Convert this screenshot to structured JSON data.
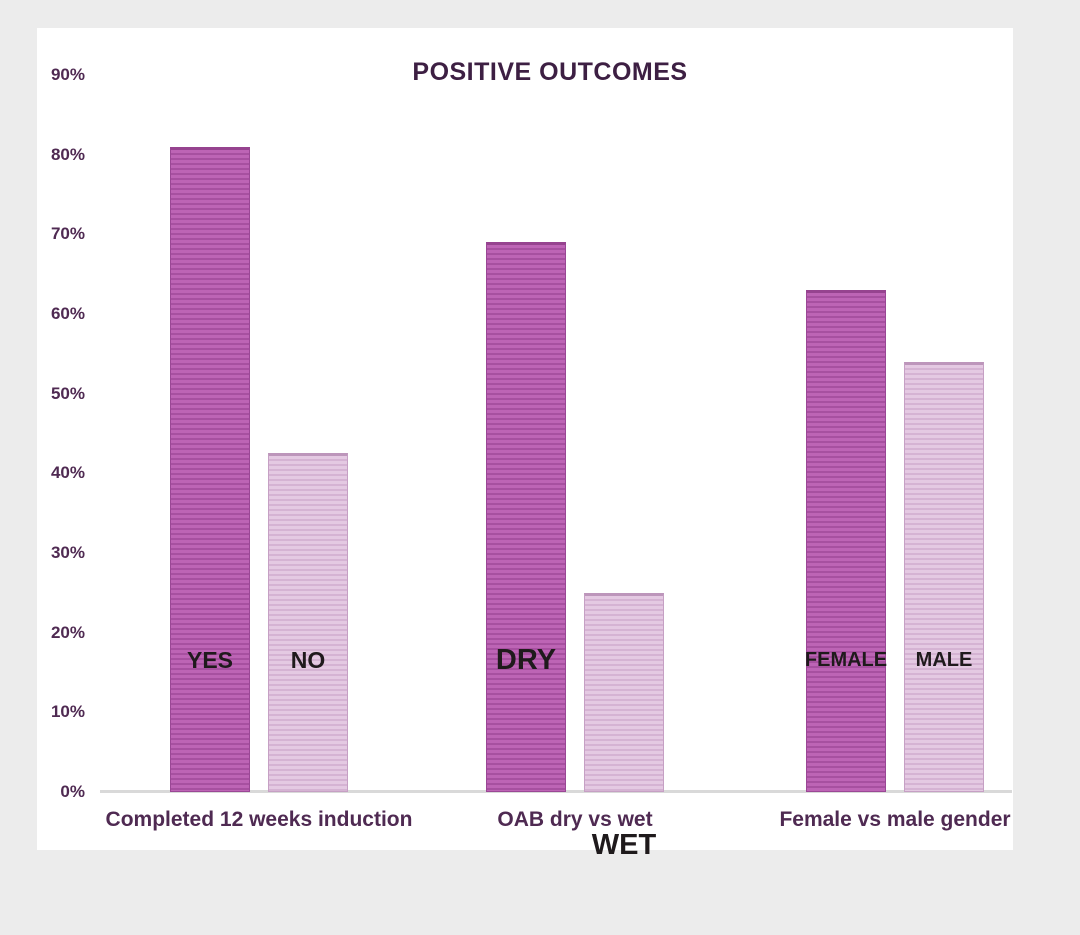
{
  "chart_data": {
    "type": "bar",
    "title": "POSITIVE OUTCOMES",
    "xlabel": "",
    "ylabel": "",
    "ylim": [
      0,
      90
    ],
    "grid": false,
    "legend": "none (labels inside bars)",
    "yticks": [
      {
        "value": 90,
        "label": "90%"
      },
      {
        "value": 80,
        "label": "80%"
      },
      {
        "value": 70,
        "label": "70%"
      },
      {
        "value": 60,
        "label": "60%"
      },
      {
        "value": 50,
        "label": "50%"
      },
      {
        "value": 40,
        "label": "40%"
      },
      {
        "value": 30,
        "label": "30%"
      },
      {
        "value": 20,
        "label": "20%"
      },
      {
        "value": 10,
        "label": "10%"
      },
      {
        "value": 0,
        "label": "0%"
      }
    ],
    "groups": [
      {
        "category": "Completed 12 weeks induction",
        "bars": [
          {
            "label": "YES",
            "value": 81,
            "variant": "dark"
          },
          {
            "label": "NO",
            "value": 42.5,
            "variant": "light"
          }
        ]
      },
      {
        "category": "OAB dry vs wet",
        "bars": [
          {
            "label": "DRY",
            "value": 69,
            "variant": "dark"
          },
          {
            "label": "WET",
            "value": 25,
            "variant": "light"
          }
        ]
      },
      {
        "category": "Female vs male gender",
        "bars": [
          {
            "label": "FEMALE",
            "value": 63,
            "variant": "dark"
          },
          {
            "label": "MALE",
            "value": 54,
            "variant": "light"
          }
        ]
      }
    ],
    "colors": {
      "page_background": "#ececec",
      "panel_background": "#ffffff",
      "title_text": "#3d1f43",
      "axis_tick_text": "#4f2a52",
      "category_text": "#4f2a52",
      "bar_label_text": "#1f1a1c",
      "dark_bar_fill": "#bd64b5",
      "dark_bar_stripe": "#a750a0",
      "dark_bar_border": "#9a4795",
      "light_bar_fill": "#e4c9e2",
      "light_bar_stripe": "#d5b3d3",
      "light_bar_border": "#c6a0c4",
      "axis_line": "#d9d9d9"
    }
  }
}
